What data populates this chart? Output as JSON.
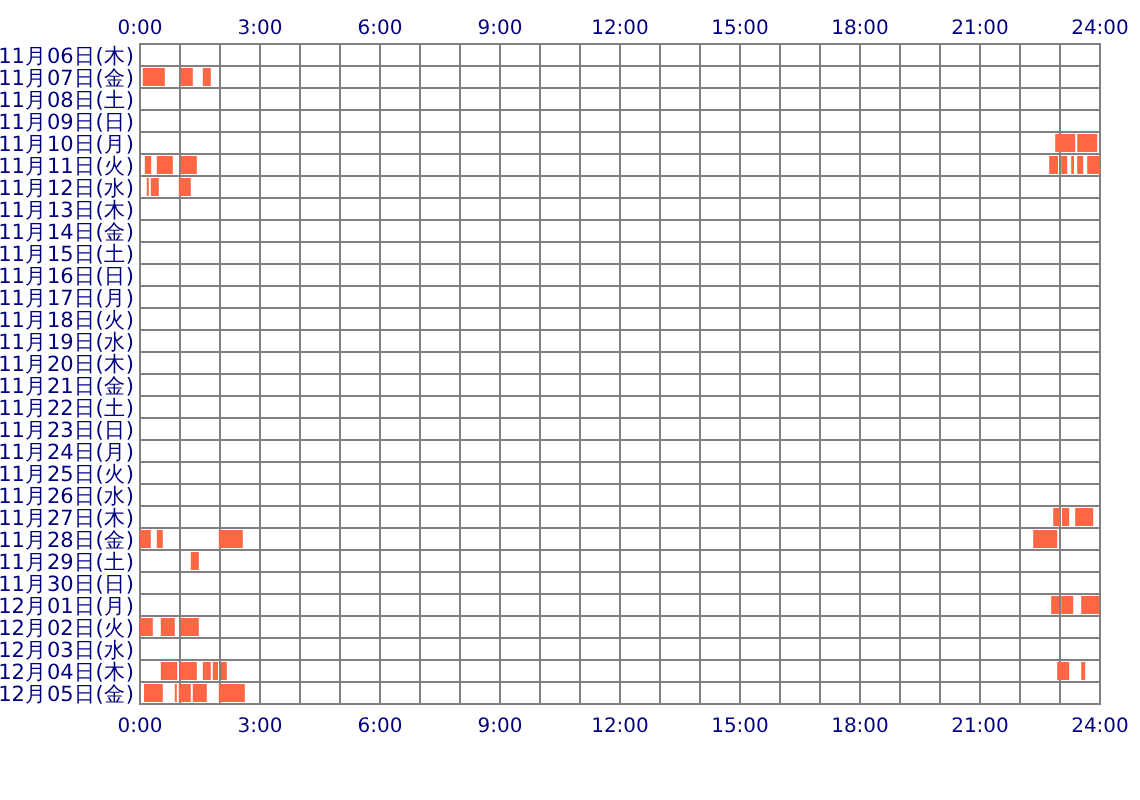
{
  "chart_data": {
    "type": "bar",
    "orientation": "horizontal",
    "grid": true,
    "categories": [
      "11月06日(木)",
      "11月07日(金)",
      "11月08日(土)",
      "11月09日(日)",
      "11月10日(月)",
      "11月11日(火)",
      "11月12日(水)",
      "11月13日(木)",
      "11月14日(金)",
      "11月15日(土)",
      "11月16日(日)",
      "11月17日(月)",
      "11月18日(火)",
      "11月19日(水)",
      "11月20日(木)",
      "11月21日(金)",
      "11月22日(土)",
      "11月23日(日)",
      "11月24日(月)",
      "11月25日(火)",
      "11月26日(水)",
      "11月27日(木)",
      "11月28日(金)",
      "11月29日(土)",
      "11月30日(日)",
      "12月01日(月)",
      "12月02日(火)",
      "12月03日(水)",
      "12月04日(木)",
      "12月05日(金)"
    ],
    "xlim": [
      0,
      24
    ],
    "xticks": [
      {
        "value": 0,
        "label": "0:00"
      },
      {
        "value": 3,
        "label": "3:00"
      },
      {
        "value": 6,
        "label": "6:00"
      },
      {
        "value": 9,
        "label": "9:00"
      },
      {
        "value": 12,
        "label": "12:00"
      },
      {
        "value": 15,
        "label": "15:00"
      },
      {
        "value": 18,
        "label": "18:00"
      },
      {
        "value": 21,
        "label": "21:00"
      },
      {
        "value": 24,
        "label": "24:00"
      }
    ],
    "x2lim": [
      0,
      24
    ],
    "x2ticks": [
      {
        "value": 0,
        "label": "0:00"
      },
      {
        "value": 3,
        "label": "3:00"
      },
      {
        "value": 6,
        "label": "6:00"
      },
      {
        "value": 9,
        "label": "9:00"
      },
      {
        "value": 12,
        "label": "12:00"
      },
      {
        "value": 15,
        "label": "15:00"
      },
      {
        "value": 18,
        "label": "18:00"
      },
      {
        "value": 21,
        "label": "21:00"
      },
      {
        "value": 24,
        "label": "24:00"
      }
    ],
    "series": [
      {
        "color": "#ff6644",
        "base": [
          null,
          0.07,
          null,
          null,
          22.88,
          0.12,
          0.17,
          null,
          null,
          null,
          null,
          null,
          null,
          null,
          null,
          null,
          null,
          null,
          null,
          null,
          null,
          22.83,
          0,
          1.27,
          null,
          22.78,
          0,
          null,
          0.52,
          0.1
        ],
        "values": [
          null,
          0.55,
          null,
          null,
          0.5,
          0.16,
          0.05,
          null,
          null,
          null,
          null,
          null,
          null,
          null,
          null,
          null,
          null,
          null,
          null,
          null,
          null,
          0.17,
          0.27,
          0.2,
          null,
          0.2,
          0.32,
          null,
          0.41,
          0.47
        ]
      },
      {
        "color": "#ff6644",
        "base": [
          null,
          1.02,
          null,
          null,
          23.43,
          0.42,
          0.27,
          null,
          null,
          null,
          null,
          null,
          null,
          null,
          null,
          null,
          null,
          null,
          null,
          null,
          null,
          23.05,
          0.42,
          null,
          null,
          23.03,
          0.52,
          null,
          1.0,
          0.87
        ],
        "values": [
          null,
          0.3,
          null,
          null,
          0.5,
          0.4,
          0.2,
          null,
          null,
          null,
          null,
          null,
          null,
          null,
          null,
          null,
          null,
          null,
          null,
          null,
          null,
          0.18,
          0.15,
          null,
          null,
          0.3,
          0.35,
          null,
          0.42,
          0.05
        ]
      },
      {
        "color": "#ff6644",
        "base": [
          null,
          1.57,
          null,
          null,
          null,
          1.02,
          0.97,
          null,
          null,
          null,
          null,
          null,
          null,
          null,
          null,
          null,
          null,
          null,
          null,
          null,
          null,
          23.38,
          1.97,
          null,
          null,
          23.53,
          1.02,
          null,
          1.57,
          0.97
        ],
        "values": [
          null,
          0.2,
          null,
          null,
          null,
          0.4,
          0.3,
          null,
          null,
          null,
          null,
          null,
          null,
          null,
          null,
          null,
          null,
          null,
          null,
          null,
          null,
          0.45,
          0.6,
          null,
          null,
          0.45,
          0.45,
          null,
          0.2,
          0.3
        ]
      },
      {
        "color": "#ff6644",
        "base": [
          null,
          null,
          null,
          null,
          null,
          22.73,
          null,
          null,
          null,
          null,
          null,
          null,
          null,
          null,
          null,
          null,
          null,
          null,
          null,
          null,
          null,
          null,
          22.33,
          null,
          null,
          null,
          null,
          null,
          1.82,
          1.32
        ],
        "values": [
          null,
          null,
          null,
          null,
          null,
          0.22,
          null,
          null,
          null,
          null,
          null,
          null,
          null,
          null,
          null,
          null,
          null,
          null,
          null,
          null,
          null,
          null,
          0.6,
          null,
          null,
          null,
          null,
          null,
          0.13,
          0.35
        ]
      },
      {
        "color": "#ff6644",
        "base": [
          null,
          null,
          null,
          null,
          null,
          23.03,
          null,
          null,
          null,
          null,
          null,
          null,
          null,
          null,
          null,
          null,
          null,
          null,
          null,
          null,
          null,
          null,
          null,
          null,
          null,
          null,
          null,
          null,
          2.02,
          1.97
        ],
        "values": [
          null,
          null,
          null,
          null,
          null,
          0.15,
          null,
          null,
          null,
          null,
          null,
          null,
          null,
          null,
          null,
          null,
          null,
          null,
          null,
          null,
          null,
          null,
          null,
          null,
          null,
          null,
          null,
          null,
          0.15,
          0.65
        ]
      },
      {
        "color": "#ff6644",
        "base": [
          null,
          null,
          null,
          null,
          null,
          23.28,
          null,
          null,
          null,
          null,
          null,
          null,
          null,
          null,
          null,
          null,
          null,
          null,
          null,
          null,
          null,
          null,
          null,
          null,
          null,
          null,
          null,
          null,
          22.93,
          null
        ],
        "values": [
          null,
          null,
          null,
          null,
          null,
          0.07,
          null,
          null,
          null,
          null,
          null,
          null,
          null,
          null,
          null,
          null,
          null,
          null,
          null,
          null,
          null,
          null,
          null,
          null,
          null,
          null,
          null,
          null,
          0.3,
          null
        ]
      },
      {
        "color": "#ff6644",
        "base": [
          null,
          null,
          null,
          null,
          null,
          23.43,
          null,
          null,
          null,
          null,
          null,
          null,
          null,
          null,
          null,
          null,
          null,
          null,
          null,
          null,
          null,
          null,
          null,
          null,
          null,
          null,
          null,
          null,
          23.53,
          null
        ],
        "values": [
          null,
          null,
          null,
          null,
          null,
          0.15,
          null,
          null,
          null,
          null,
          null,
          null,
          null,
          null,
          null,
          null,
          null,
          null,
          null,
          null,
          null,
          null,
          null,
          null,
          null,
          null,
          null,
          null,
          0.1,
          null
        ]
      },
      {
        "color": "#ff6644",
        "base": [
          null,
          null,
          null,
          null,
          null,
          23.68,
          null,
          null,
          null,
          null,
          null,
          null,
          null,
          null,
          null,
          null,
          null,
          null,
          null,
          null,
          null,
          null,
          null,
          null,
          null,
          null,
          null,
          null,
          null,
          null
        ],
        "values": [
          null,
          null,
          null,
          null,
          null,
          0.32,
          null,
          null,
          null,
          null,
          null,
          null,
          null,
          null,
          null,
          null,
          null,
          null,
          null,
          null,
          null,
          null,
          null,
          null,
          null,
          null,
          null,
          null,
          null,
          null
        ]
      }
    ]
  }
}
